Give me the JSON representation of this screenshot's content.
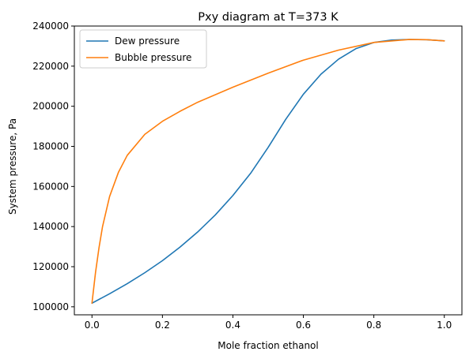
{
  "chart_data": {
    "type": "line",
    "title": "Pxy diagram at T=373 K",
    "xlabel": "Mole fraction ethanol",
    "ylabel": "System pressure, Pa",
    "xlim": [
      -0.05,
      1.05
    ],
    "ylim": [
      96000,
      240000
    ],
    "xticks": [
      0.0,
      0.2,
      0.4,
      0.6,
      0.8,
      1.0
    ],
    "xtick_labels": [
      "0.0",
      "0.2",
      "0.4",
      "0.6",
      "0.8",
      "1.0"
    ],
    "yticks": [
      100000,
      120000,
      140000,
      160000,
      180000,
      200000,
      220000,
      240000
    ],
    "ytick_labels": [
      "100000",
      "120000",
      "140000",
      "160000",
      "180000",
      "200000",
      "220000",
      "240000"
    ],
    "grid": false,
    "legend": "top-left",
    "series": [
      {
        "name": "Dew pressure",
        "color": "#1f77b4",
        "x": [
          0.0,
          0.05,
          0.1,
          0.15,
          0.2,
          0.25,
          0.3,
          0.35,
          0.4,
          0.45,
          0.5,
          0.55,
          0.6,
          0.65,
          0.7,
          0.75,
          0.8,
          0.85,
          0.9,
          0.95,
          1.0
        ],
        "y": [
          101800,
          106500,
          111500,
          117000,
          123000,
          129800,
          137300,
          145800,
          155500,
          166500,
          179500,
          193500,
          206000,
          216000,
          223500,
          228800,
          231800,
          233000,
          233300,
          233200,
          232600
        ]
      },
      {
        "name": "Bubble pressure",
        "color": "#ff7f0e",
        "x": [
          0.0,
          0.01,
          0.02,
          0.03,
          0.05,
          0.075,
          0.1,
          0.15,
          0.2,
          0.25,
          0.3,
          0.4,
          0.5,
          0.6,
          0.7,
          0.8,
          0.9,
          0.95,
          1.0
        ],
        "y": [
          101800,
          117000,
          129500,
          140000,
          155000,
          167000,
          175500,
          186000,
          192500,
          197500,
          202000,
          209500,
          216500,
          223000,
          228000,
          231800,
          233300,
          233200,
          232600
        ]
      }
    ]
  }
}
